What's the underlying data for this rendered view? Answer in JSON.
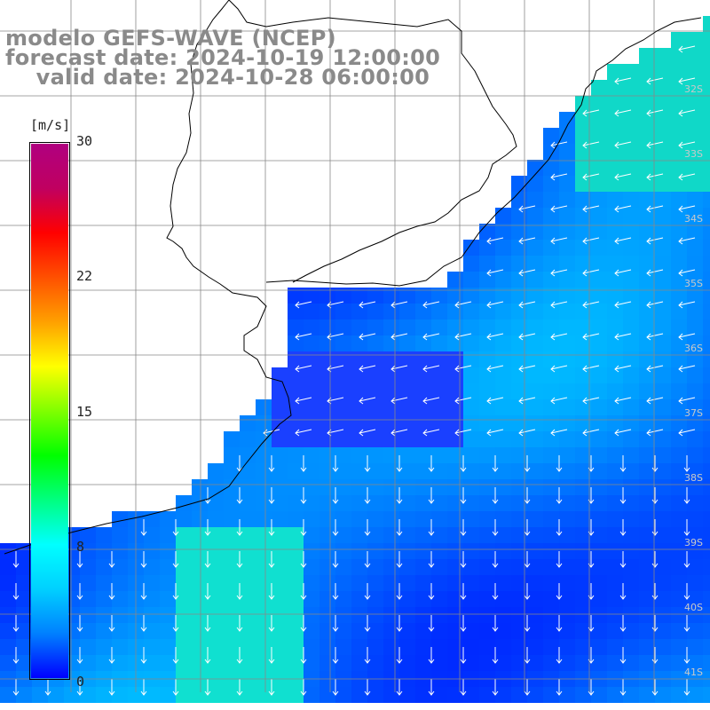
{
  "title": {
    "line1": "modelo GEFS-WAVE (NCEP)",
    "line2": "forecast date: 2024-10-19 12:00:00",
    "line3": "    valid date: 2024-10-28 06:00:00"
  },
  "colorbar": {
    "unit": "[m/s]",
    "ticks": [
      "30",
      "22",
      "15",
      "8",
      "0"
    ],
    "tick_values": [
      30,
      22,
      15,
      8,
      0
    ],
    "colors": [
      "#0000ff",
      "#0080ff",
      "#00d0ff",
      "#00ffff",
      "#00ff80",
      "#00ff00",
      "#80ff00",
      "#ffff00",
      "#ffa000",
      "#ff5000",
      "#ff0000",
      "#c00060",
      "#b00080"
    ]
  },
  "map": {
    "latitude_labels": [
      "32S",
      "33S",
      "34S",
      "35S",
      "36S",
      "37S",
      "38S",
      "39S",
      "40S",
      "41S"
    ],
    "land_color": "#ffffff",
    "grid_color": "#888888",
    "coast_color": "#000000",
    "arrow_color": "#ffffff"
  }
}
